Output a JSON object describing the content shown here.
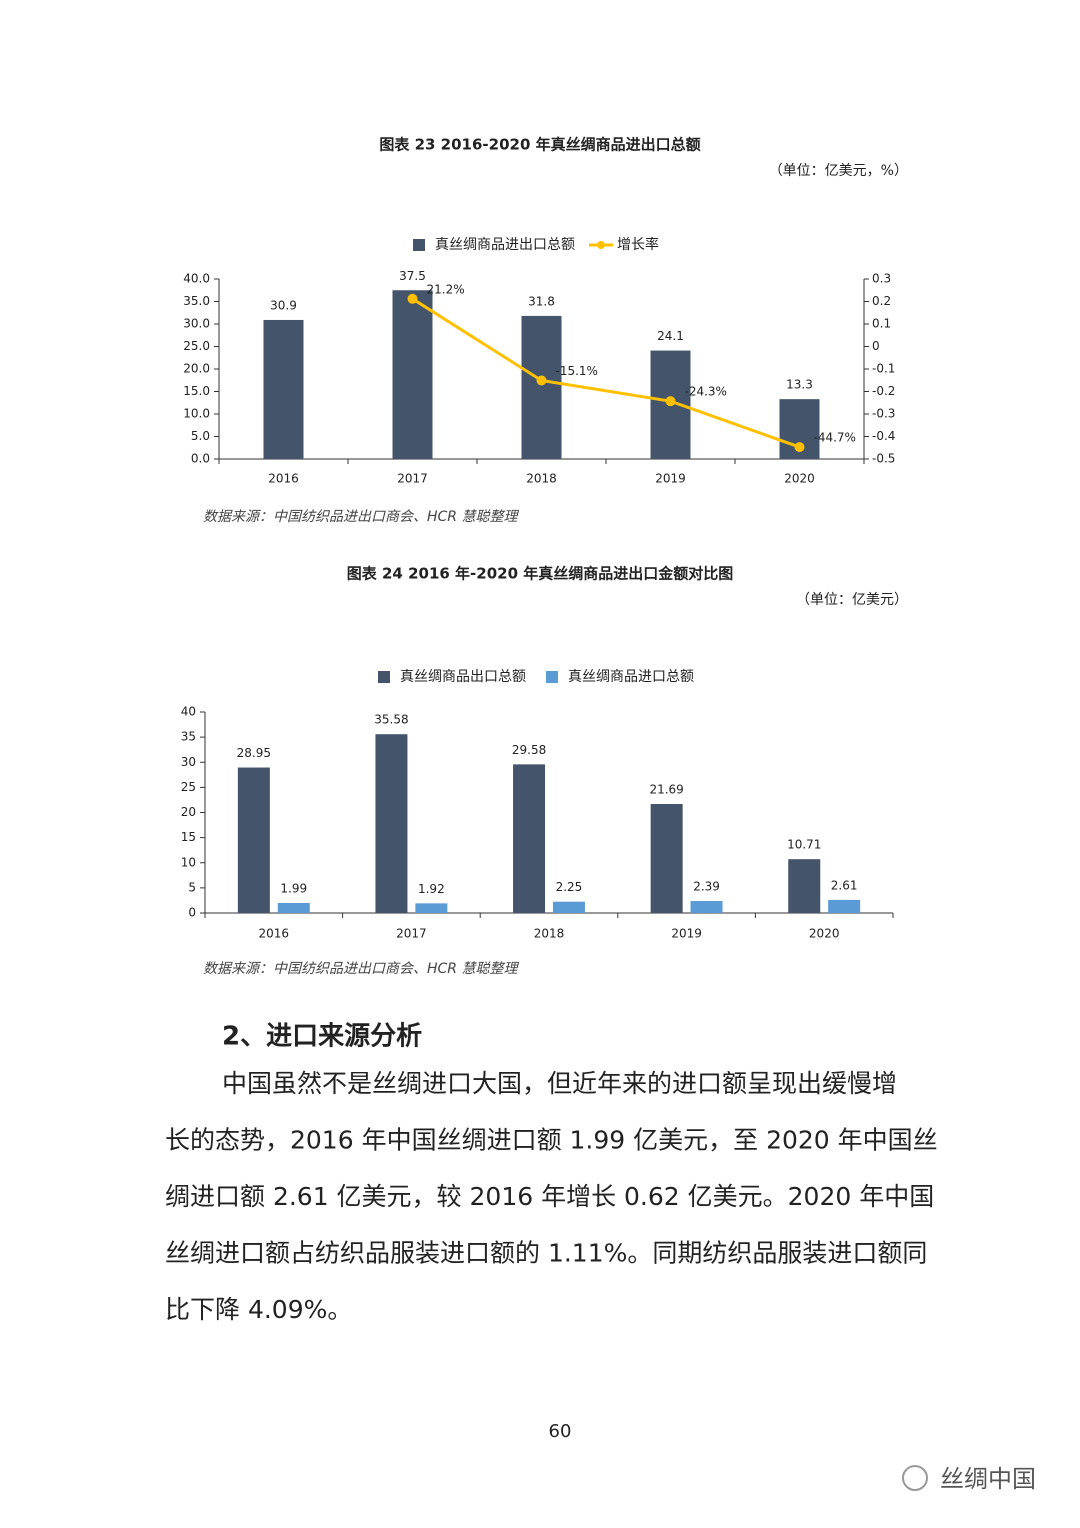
{
  "chart_data": [
    {
      "type": "bar",
      "title": "图表 23 2016-2020 年真丝绸商品进出口总额",
      "unit": "（单位：亿美元，%）",
      "categories": [
        "2016",
        "2017",
        "2018",
        "2019",
        "2020"
      ],
      "series": [
        {
          "name": "真丝绸商品进出口总额",
          "type": "bar",
          "color": "#44546a",
          "values": [
            30.9,
            37.5,
            31.8,
            24.1,
            13.3
          ]
        },
        {
          "name": "增长率",
          "type": "line",
          "axis": "y2",
          "color": "#ffc000",
          "values": [
            null,
            0.212,
            -0.151,
            -0.243,
            -0.447
          ],
          "value_labels": [
            null,
            "21.2%",
            "-15.1%",
            "-24.3%",
            "-44.7%"
          ]
        }
      ],
      "ylim": [
        0,
        40
      ],
      "yticks": [
        {
          "value": 0,
          "label": "0.0"
        },
        {
          "value": 5,
          "label": "5.0"
        },
        {
          "value": 10,
          "label": "10.0"
        },
        {
          "value": 15,
          "label": "15.0"
        },
        {
          "value": 20,
          "label": "20.0"
        },
        {
          "value": 25,
          "label": "25.0"
        },
        {
          "value": 30,
          "label": "30.0"
        },
        {
          "value": 35,
          "label": "35.0"
        },
        {
          "value": 40,
          "label": "40.0"
        }
      ],
      "y2lim": [
        -0.5,
        0.3
      ],
      "y2ticks": [
        -0.5,
        -0.4,
        -0.3,
        -0.2,
        -0.1,
        0,
        0.1,
        0.2,
        0.3
      ],
      "source": "数据来源：中国纺织品进出口商会、HCR 慧聪整理"
    },
    {
      "type": "bar",
      "title": "图表 24 2016 年-2020 年真丝绸商品进出口金额对比图",
      "unit": "（单位：亿美元）",
      "categories": [
        "2016",
        "2017",
        "2018",
        "2019",
        "2020"
      ],
      "series": [
        {
          "name": "真丝绸商品出口总额",
          "type": "bar",
          "color": "#44546a",
          "values": [
            28.95,
            35.58,
            29.58,
            21.69,
            10.71
          ]
        },
        {
          "name": "真丝绸商品进口总额",
          "type": "bar",
          "color": "#5b9bd5",
          "values": [
            1.99,
            1.92,
            2.25,
            2.39,
            2.61
          ]
        }
      ],
      "ylim": [
        0,
        40
      ],
      "yticks": [
        0,
        5,
        10,
        15,
        20,
        25,
        30,
        35,
        40
      ],
      "source": "数据来源：中国纺织品进出口商会、HCR 慧聪整理"
    }
  ],
  "document": {
    "heading": "2、进口来源分析",
    "lines": [
      "中国虽然不是丝绸进口大国，但近年来的进口额呈现出缓慢增",
      "长的态势，2016 年中国丝绸进口额 1.99 亿美元，至 2020 年中国丝",
      "绸进口额 2.61 亿美元，较 2016 年增长 0.62 亿美元。2020 年中国",
      "丝绸进口额占纺织品服装进口额的 1.11%。同期纺织品服装进口额同",
      "比下降 4.09%。"
    ],
    "page_number": "60",
    "footer": "丝绸中国"
  }
}
